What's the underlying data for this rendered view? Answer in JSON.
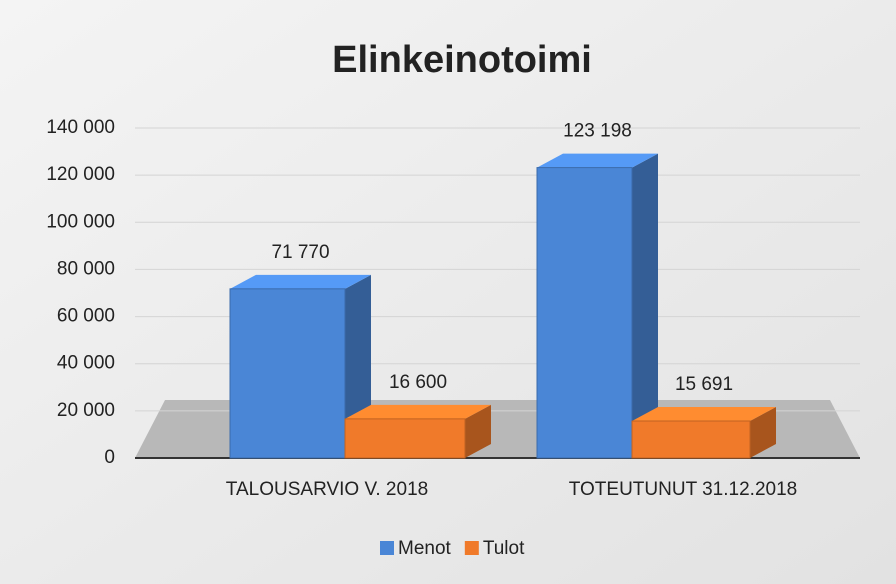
{
  "chart_data": {
    "type": "bar3d",
    "title": "Elinkeinotoimi",
    "categories": [
      "TALOUSARVIO V. 2018",
      "TOTEUTUNUT 31.12.2018"
    ],
    "series": [
      {
        "name": "Menot",
        "color": "#4a86d6",
        "values": [
          71770,
          123198
        ],
        "value_labels": [
          "71 770",
          "123 198"
        ]
      },
      {
        "name": "Tulot",
        "color": "#f07a2a",
        "values": [
          16600,
          15691
        ],
        "value_labels": [
          "16 600",
          "15 691"
        ]
      }
    ],
    "ylim": [
      0,
      140000
    ],
    "yticks": [
      0,
      {
        "value": 20000,
        "label": "20 000"
      },
      {
        "value": 40000,
        "label": "40 000"
      },
      {
        "value": 60000,
        "label": "60 000"
      },
      {
        "value": 80000,
        "label": "80 000"
      },
      {
        "value": 100000,
        "label": "100 000"
      },
      {
        "value": 120000,
        "label": "120 000"
      },
      {
        "value": 140000,
        "label": "140 000"
      }
    ],
    "grid": true,
    "legend": "bottom"
  }
}
